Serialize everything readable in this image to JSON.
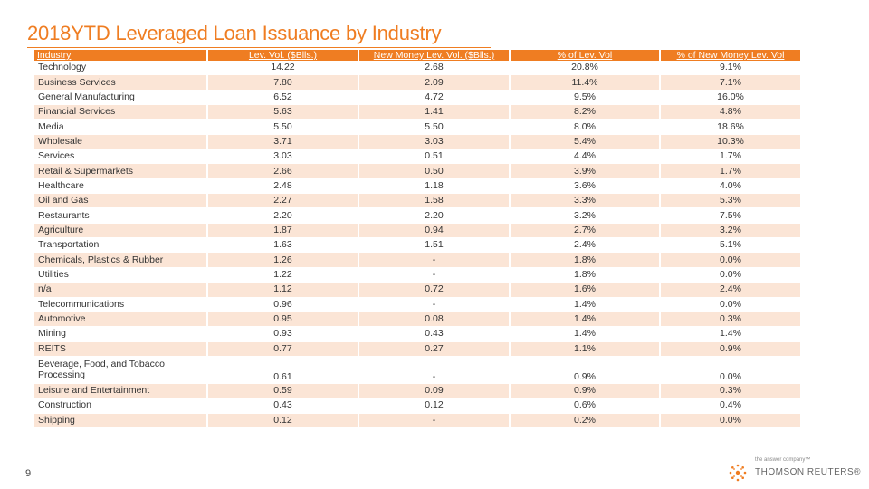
{
  "title": "2018YTD Leveraged Loan Issuance by Industry",
  "headers": [
    "Industry",
    "Lev. Vol. ($Blls.)",
    "New Money Lev. Vol. ($Blls.)",
    "% of Lev. Vol",
    "% of New Money Lev. Vol"
  ],
  "rows": [
    [
      "Technology",
      "14.22",
      "2.68",
      "20.8%",
      "9.1%"
    ],
    [
      "Business Services",
      "7.80",
      "2.09",
      "11.4%",
      "7.1%"
    ],
    [
      "General Manufacturing",
      "6.52",
      "4.72",
      "9.5%",
      "16.0%"
    ],
    [
      "Financial Services",
      "5.63",
      "1.41",
      "8.2%",
      "4.8%"
    ],
    [
      "Media",
      "5.50",
      "5.50",
      "8.0%",
      "18.6%"
    ],
    [
      "Wholesale",
      "3.71",
      "3.03",
      "5.4%",
      "10.3%"
    ],
    [
      "Services",
      "3.03",
      "0.51",
      "4.4%",
      "1.7%"
    ],
    [
      "Retail & Supermarkets",
      "2.66",
      "0.50",
      "3.9%",
      "1.7%"
    ],
    [
      "Healthcare",
      "2.48",
      "1.18",
      "3.6%",
      "4.0%"
    ],
    [
      "Oil and Gas",
      "2.27",
      "1.58",
      "3.3%",
      "5.3%"
    ],
    [
      "Restaurants",
      "2.20",
      "2.20",
      "3.2%",
      "7.5%"
    ],
    [
      "Agriculture",
      "1.87",
      "0.94",
      "2.7%",
      "3.2%"
    ],
    [
      "Transportation",
      "1.63",
      "1.51",
      "2.4%",
      "5.1%"
    ],
    [
      "Chemicals, Plastics & Rubber",
      "1.26",
      "-",
      "1.8%",
      "0.0%"
    ],
    [
      "Utilities",
      "1.22",
      "-",
      "1.8%",
      "0.0%"
    ],
    [
      "n/a",
      "1.12",
      "0.72",
      "1.6%",
      "2.4%"
    ],
    [
      "Telecommunications",
      "0.96",
      "-",
      "1.4%",
      "0.0%"
    ],
    [
      "Automotive",
      "0.95",
      "0.08",
      "1.4%",
      "0.3%"
    ],
    [
      "Mining",
      "0.93",
      "0.43",
      "1.4%",
      "1.4%"
    ],
    [
      "REITS",
      "0.77",
      "0.27",
      "1.1%",
      "0.9%"
    ],
    [
      "Beverage, Food, and Tobacco Processing",
      "0.61",
      "-",
      "0.9%",
      "0.0%"
    ],
    [
      "Leisure and Entertainment",
      "0.59",
      "0.09",
      "0.9%",
      "0.3%"
    ],
    [
      "Construction",
      "0.43",
      "0.12",
      "0.6%",
      "0.4%"
    ],
    [
      "Shipping",
      "0.12",
      "-",
      "0.2%",
      "0.0%"
    ]
  ],
  "page_number": "9",
  "brand": {
    "tagline": "the answer company™",
    "name": "THOMSON REUTERS®"
  },
  "colors": {
    "accent": "#ef7d22",
    "row_alt": "#fbe5d6"
  }
}
